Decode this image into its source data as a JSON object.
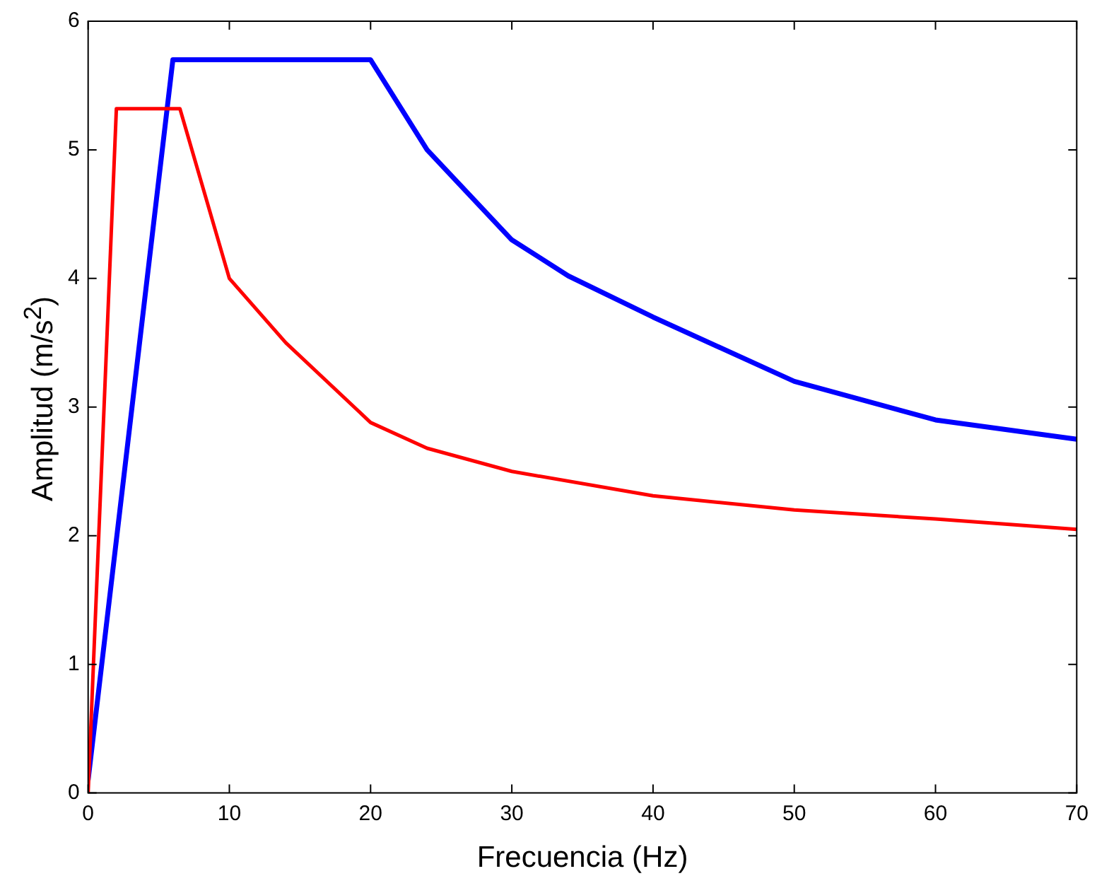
{
  "chart_data": {
    "type": "line",
    "xlabel": "Frecuencia (Hz)",
    "ylabel": "Amplitud (m/s$^{2}$)",
    "xlim": [
      0,
      70
    ],
    "xticks": [
      0,
      10,
      20,
      30,
      40,
      50,
      60,
      70
    ],
    "ylim": [
      0,
      6
    ],
    "yticks": [
      0,
      1,
      2,
      3,
      4,
      5,
      6
    ],
    "grid": false,
    "legend": false,
    "marker": "none",
    "line_style": "solid",
    "series": [
      {
        "color": "#0000ff",
        "x": [
          0,
          6,
          20,
          24,
          30,
          34,
          40,
          50,
          60,
          70
        ],
        "values": [
          0.1,
          5.7,
          5.7,
          5.0,
          4.3,
          4.02,
          3.7,
          3.2,
          2.9,
          2.75
        ]
      },
      {
        "color": "#ff0000",
        "x": [
          0,
          2,
          6.5,
          10,
          14,
          20,
          24,
          30,
          40,
          50,
          60,
          70
        ],
        "values": [
          0,
          5.32,
          5.32,
          4.0,
          3.5,
          2.88,
          2.68,
          2.5,
          2.31,
          2.2,
          2.13,
          2.05
        ]
      }
    ]
  }
}
